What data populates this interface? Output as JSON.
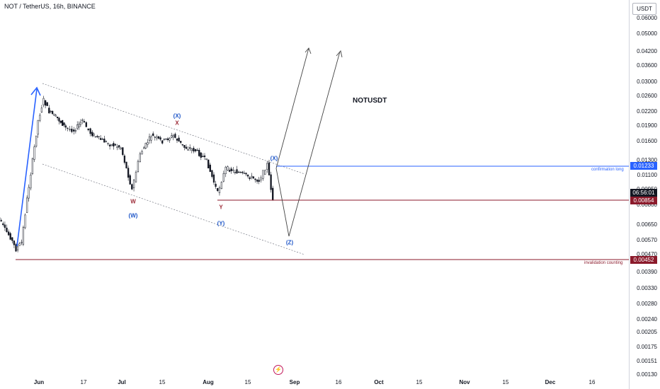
{
  "header": {
    "symbol_title": "NOT / TetherUS, 16h, BINANCE"
  },
  "watermark_title": "NOTUSDT",
  "price_axis": {
    "currency": "USDT",
    "ticks": [
      "0.06000",
      "0.05000",
      "0.04200",
      "0.03600",
      "0.03000",
      "0.02600",
      "0.02200",
      "0.01900",
      "0.01600",
      "0.01300",
      "0.01100",
      "0.00950",
      "0.00800",
      "0.00650",
      "0.00570",
      "0.00470",
      "0.00390",
      "0.00330",
      "0.00280",
      "0.00240",
      "0.00205",
      "0.00175",
      "0.00151",
      "0.00130"
    ]
  },
  "time_axis": {
    "ticks": [
      {
        "label": "Jun",
        "bold": true
      },
      {
        "label": "17",
        "bold": false
      },
      {
        "label": "Jul",
        "bold": true
      },
      {
        "label": "15",
        "bold": false
      },
      {
        "label": "Aug",
        "bold": true
      },
      {
        "label": "15",
        "bold": false
      },
      {
        "label": "Sep",
        "bold": true
      },
      {
        "label": "16",
        "bold": false
      },
      {
        "label": "Oct",
        "bold": true
      },
      {
        "label": "15",
        "bold": false
      },
      {
        "label": "Nov",
        "bold": true
      },
      {
        "label": "15",
        "bold": false
      },
      {
        "label": "Dec",
        "bold": true
      },
      {
        "label": "16",
        "bold": false
      }
    ]
  },
  "price_labels": {
    "confirmation": "0.01233",
    "countdown": "06:56:01",
    "current": "0.00854",
    "invalidation": "0.00452"
  },
  "annotations": {
    "confirmation_caption": "confirmation long",
    "invalidation_caption": "invalidation counting"
  },
  "wave_labels": [
    {
      "text": "(X)",
      "color": "blue"
    },
    {
      "text": "X",
      "color": "red"
    },
    {
      "text": "W",
      "color": "red"
    },
    {
      "text": "(W)",
      "color": "blue"
    },
    {
      "text": "Y",
      "color": "red"
    },
    {
      "text": "(Y)",
      "color": "blue"
    },
    {
      "text": "(X)",
      "color": "blue"
    },
    {
      "text": "(Z)",
      "color": "blue"
    }
  ],
  "chart_data": {
    "type": "candlestick",
    "title": "NOT / TetherUS, 16h, BINANCE",
    "y_scale": "log",
    "ylim": [
      0.0013,
      0.065
    ],
    "horizontal_levels": [
      {
        "price": 0.01233,
        "label": "confirmation long",
        "color": "#2962ff"
      },
      {
        "price": 0.00854,
        "color": "#8b1a2b"
      },
      {
        "price": 0.00452,
        "label": "invalidation counting",
        "color": "#8b1a2b"
      }
    ],
    "close_path": [
      {
        "date": "2024-05-16",
        "close": 0.0075
      },
      {
        "date": "2024-05-18",
        "close": 0.0069
      },
      {
        "date": "2024-05-20",
        "close": 0.0062
      },
      {
        "date": "2024-05-22",
        "close": 0.0057
      },
      {
        "date": "2024-05-24",
        "close": 0.005
      },
      {
        "date": "2024-05-26",
        "close": 0.0054
      },
      {
        "date": "2024-05-28",
        "close": 0.0086
      },
      {
        "date": "2024-05-30",
        "close": 0.013
      },
      {
        "date": "2024-06-01",
        "close": 0.02
      },
      {
        "date": "2024-06-03",
        "close": 0.025
      },
      {
        "date": "2024-06-05",
        "close": 0.022
      },
      {
        "date": "2024-06-08",
        "close": 0.0205
      },
      {
        "date": "2024-06-11",
        "close": 0.0185
      },
      {
        "date": "2024-06-14",
        "close": 0.018
      },
      {
        "date": "2024-06-17",
        "close": 0.02
      },
      {
        "date": "2024-06-20",
        "close": 0.0175
      },
      {
        "date": "2024-06-23",
        "close": 0.0165
      },
      {
        "date": "2024-06-27",
        "close": 0.0155
      },
      {
        "date": "2024-07-01",
        "close": 0.015
      },
      {
        "date": "2024-07-05",
        "close": 0.0095
      },
      {
        "date": "2024-07-08",
        "close": 0.014
      },
      {
        "date": "2024-07-12",
        "close": 0.017
      },
      {
        "date": "2024-07-16",
        "close": 0.016
      },
      {
        "date": "2024-07-20",
        "close": 0.017
      },
      {
        "date": "2024-07-24",
        "close": 0.015
      },
      {
        "date": "2024-07-28",
        "close": 0.0145
      },
      {
        "date": "2024-08-01",
        "close": 0.013
      },
      {
        "date": "2024-08-05",
        "close": 0.0092
      },
      {
        "date": "2024-08-08",
        "close": 0.012
      },
      {
        "date": "2024-08-12",
        "close": 0.0115
      },
      {
        "date": "2024-08-16",
        "close": 0.011
      },
      {
        "date": "2024-08-20",
        "close": 0.0105
      },
      {
        "date": "2024-08-23",
        "close": 0.0125
      },
      {
        "date": "2024-08-25",
        "close": 0.0085
      }
    ]
  }
}
